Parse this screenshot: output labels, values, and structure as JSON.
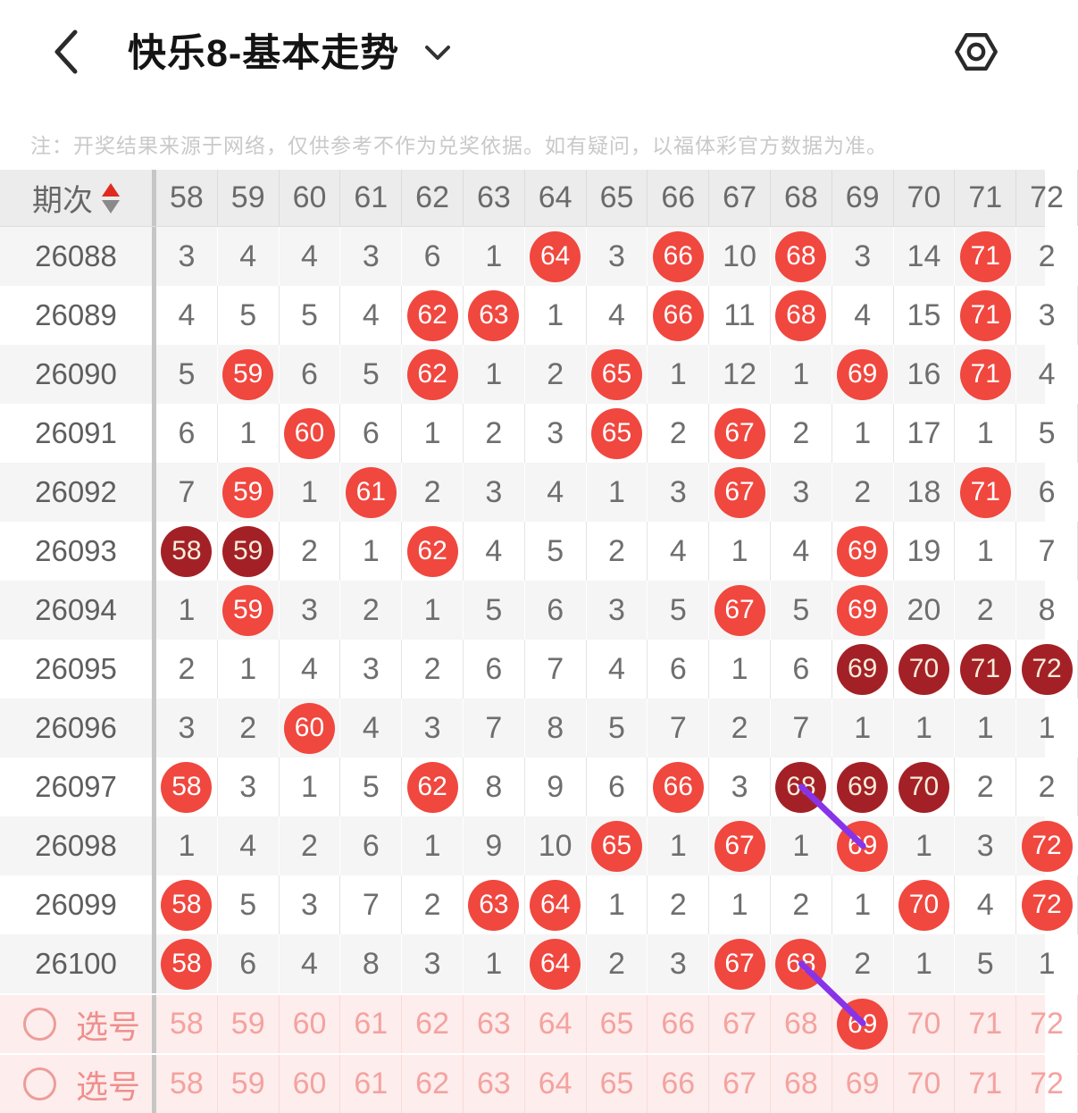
{
  "header": {
    "title": "快乐8-基本走势"
  },
  "disclaimer": "注：开奖结果来源于网络，仅供参考不作为兑奖依据。如有疑问，以福体彩官方数据为准。",
  "colors": {
    "hit_red": "#f0473f",
    "repeat_dark_red": "#a32126",
    "connector_purple": "#8833e8",
    "picker_text_pink": "#f3a3a0",
    "picker_bg_pink": "#fdedec"
  },
  "table": {
    "issue_label": "期次",
    "columns": [
      "58",
      "59",
      "60",
      "61",
      "62",
      "63",
      "64",
      "65",
      "66",
      "67",
      "68",
      "69",
      "70",
      "71",
      "72"
    ],
    "rows": [
      {
        "issue": "26088",
        "cells": [
          "3",
          "4",
          "4",
          "3",
          "6",
          "1",
          "r:64",
          "3",
          "r:66",
          "10",
          "r:68",
          "3",
          "14",
          "r:71",
          "2"
        ]
      },
      {
        "issue": "26089",
        "cells": [
          "4",
          "5",
          "5",
          "4",
          "r:62",
          "r:63",
          "1",
          "4",
          "r:66",
          "11",
          "r:68",
          "4",
          "15",
          "r:71",
          "3"
        ]
      },
      {
        "issue": "26090",
        "cells": [
          "5",
          "r:59",
          "6",
          "5",
          "r:62",
          "1",
          "2",
          "r:65",
          "1",
          "12",
          "1",
          "r:69",
          "16",
          "r:71",
          "4"
        ]
      },
      {
        "issue": "26091",
        "cells": [
          "6",
          "1",
          "r:60",
          "6",
          "1",
          "2",
          "3",
          "r:65",
          "2",
          "r:67",
          "2",
          "1",
          "17",
          "1",
          "5"
        ]
      },
      {
        "issue": "26092",
        "cells": [
          "7",
          "r:59",
          "1",
          "r:61",
          "2",
          "3",
          "4",
          "1",
          "3",
          "r:67",
          "3",
          "2",
          "18",
          "r:71",
          "6"
        ]
      },
      {
        "issue": "26093",
        "cells": [
          "d:58",
          "d:59",
          "2",
          "1",
          "r:62",
          "4",
          "5",
          "2",
          "4",
          "1",
          "4",
          "r:69",
          "19",
          "1",
          "7"
        ]
      },
      {
        "issue": "26094",
        "cells": [
          "1",
          "r:59",
          "3",
          "2",
          "1",
          "5",
          "6",
          "3",
          "5",
          "r:67",
          "5",
          "r:69",
          "20",
          "2",
          "8"
        ]
      },
      {
        "issue": "26095",
        "cells": [
          "2",
          "1",
          "4",
          "3",
          "2",
          "6",
          "7",
          "4",
          "6",
          "1",
          "6",
          "d:69",
          "d:70",
          "d:71",
          "d:72"
        ]
      },
      {
        "issue": "26096",
        "cells": [
          "3",
          "2",
          "r:60",
          "4",
          "3",
          "7",
          "8",
          "5",
          "7",
          "2",
          "7",
          "1",
          "1",
          "1",
          "1"
        ]
      },
      {
        "issue": "26097",
        "cells": [
          "r:58",
          "3",
          "1",
          "5",
          "r:62",
          "8",
          "9",
          "6",
          "r:66",
          "3",
          "d:68",
          "d:69",
          "d:70",
          "2",
          "2"
        ]
      },
      {
        "issue": "26098",
        "cells": [
          "1",
          "4",
          "2",
          "6",
          "1",
          "9",
          "10",
          "r:65",
          "1",
          "r:67",
          "1",
          "r:69",
          "1",
          "3",
          "r:72"
        ]
      },
      {
        "issue": "26099",
        "cells": [
          "r:58",
          "5",
          "3",
          "7",
          "2",
          "r:63",
          "r:64",
          "1",
          "2",
          "1",
          "2",
          "1",
          "r:70",
          "4",
          "r:72"
        ]
      },
      {
        "issue": "26100",
        "cells": [
          "r:58",
          "6",
          "4",
          "8",
          "3",
          "1",
          "r:64",
          "2",
          "3",
          "r:67",
          "r:68",
          "2",
          "1",
          "5",
          "1"
        ]
      }
    ]
  },
  "picker": {
    "rows": [
      {
        "label": "选号",
        "selected": [
          "69"
        ]
      },
      {
        "label": "选号",
        "selected": []
      }
    ]
  },
  "connections": [
    {
      "from_issue": "26097",
      "from_col": "68",
      "to_issue": "26098",
      "to_col": "69"
    },
    {
      "from_issue": "26100",
      "from_col": "68",
      "to_picker_row": 0,
      "to_col": "69"
    }
  ]
}
